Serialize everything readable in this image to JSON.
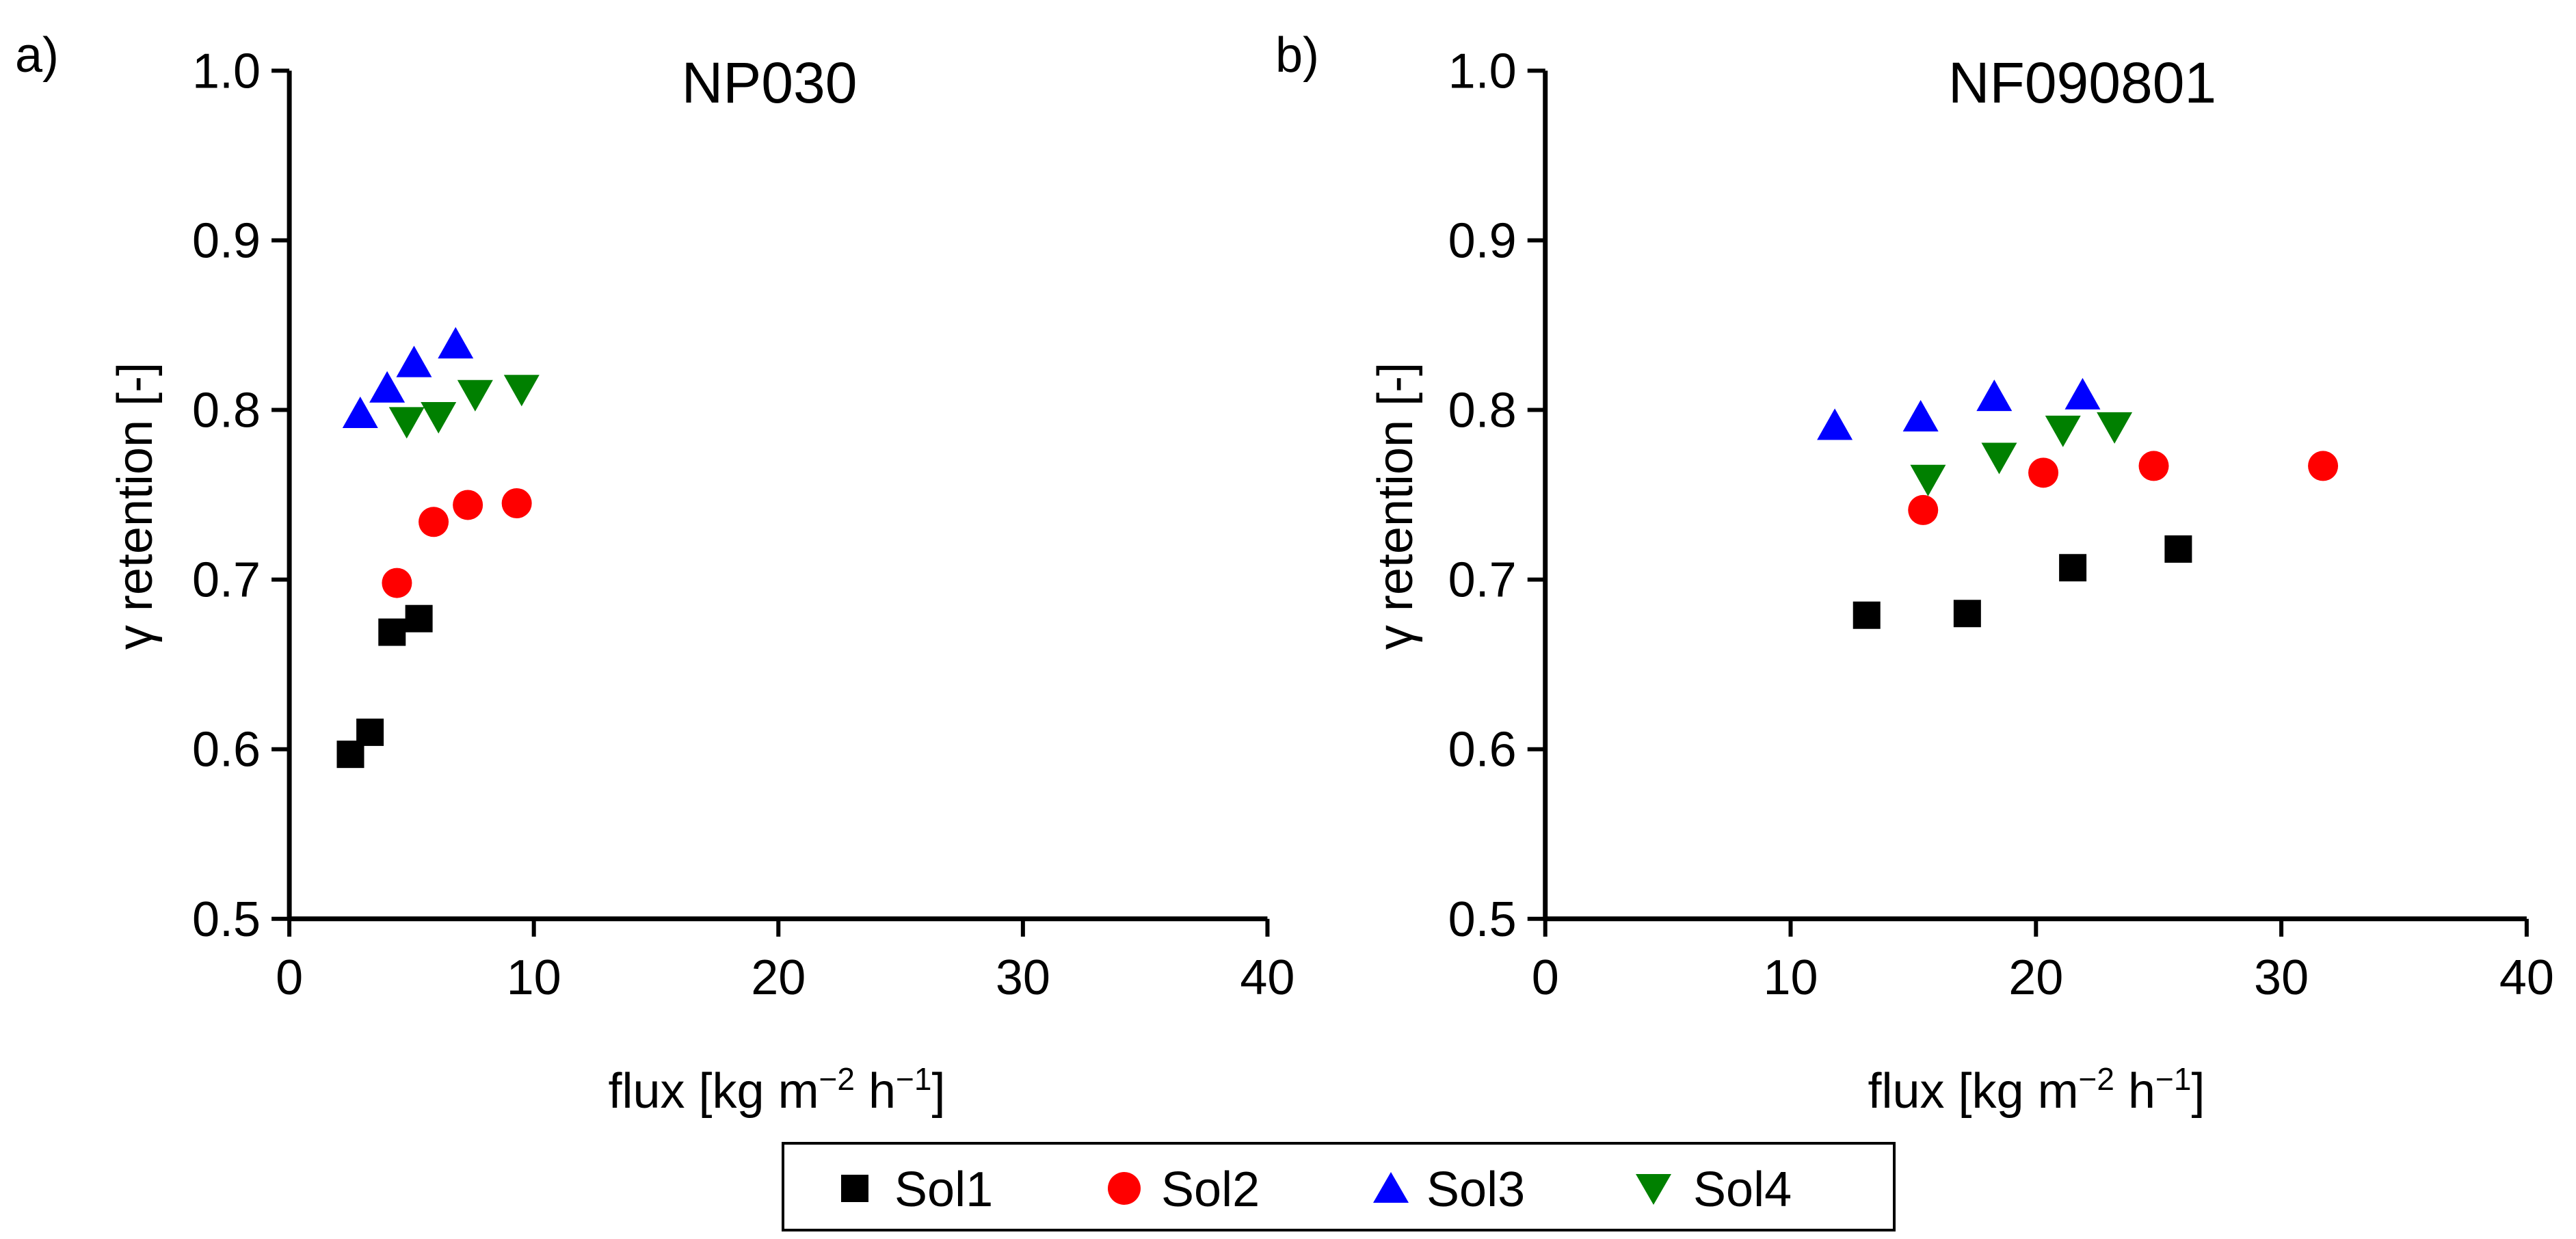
{
  "chart_data": [
    {
      "panel_label": "a)",
      "type": "scatter",
      "title": "NP030",
      "xlabel": "flux [kg m",
      "xlabel_sup1": "−2",
      "xlabel_mid": " h",
      "xlabel_sup2": "−1",
      "xlabel_end": "]",
      "ylabel": "γ retention [-]",
      "xlim": [
        0,
        40
      ],
      "ylim": [
        0.5,
        1.0
      ],
      "xticks": [
        0,
        10,
        20,
        30,
        40
      ],
      "xtick_labels": [
        "0",
        "10",
        "20",
        "30",
        "40"
      ],
      "yticks": [
        0.5,
        0.6,
        0.7,
        0.8,
        0.9,
        1.0
      ],
      "ytick_labels": [
        "0.5",
        "0.6",
        "0.7",
        "0.8",
        "0.9",
        "1.0"
      ],
      "grid": false,
      "series": [
        {
          "name": "Sol1",
          "x": [
            2.5,
            3.3,
            4.2,
            5.3
          ],
          "y": [
            0.597,
            0.61,
            0.669,
            0.677
          ]
        },
        {
          "name": "Sol2",
          "x": [
            4.4,
            5.9,
            7.3,
            9.3
          ],
          "y": [
            0.698,
            0.734,
            0.744,
            0.745
          ]
        },
        {
          "name": "Sol3",
          "x": [
            2.9,
            4.0,
            5.1,
            6.8
          ],
          "y": [
            0.797,
            0.812,
            0.827,
            0.838
          ]
        },
        {
          "name": "Sol4",
          "x": [
            4.8,
            6.1,
            7.6,
            9.5
          ],
          "y": [
            0.794,
            0.797,
            0.81,
            0.813
          ]
        }
      ]
    },
    {
      "panel_label": "b)",
      "type": "scatter",
      "title": "NF090801",
      "xlabel": "flux [kg m",
      "xlabel_sup1": "−2",
      "xlabel_mid": " h",
      "xlabel_sup2": "−1",
      "xlabel_end": "]",
      "ylabel": "γ retention [-]",
      "xlim": [
        0,
        40
      ],
      "ylim": [
        0.5,
        1.0
      ],
      "xticks": [
        0,
        10,
        20,
        30,
        40
      ],
      "xtick_labels": [
        "0",
        "10",
        "20",
        "30",
        "40"
      ],
      "yticks": [
        0.5,
        0.6,
        0.7,
        0.8,
        0.9,
        1.0
      ],
      "ytick_labels": [
        "0.5",
        "0.6",
        "0.7",
        "0.8",
        "0.9",
        "1.0"
      ],
      "grid": false,
      "series": [
        {
          "name": "Sol1",
          "x": [
            13.1,
            17.2,
            21.5,
            25.8
          ],
          "y": [
            0.679,
            0.68,
            0.707,
            0.718
          ]
        },
        {
          "name": "Sol2",
          "x": [
            15.4,
            20.3,
            24.8,
            31.7
          ],
          "y": [
            0.741,
            0.763,
            0.767,
            0.767
          ]
        },
        {
          "name": "Sol3",
          "x": [
            11.8,
            15.3,
            18.3,
            21.9
          ],
          "y": [
            0.79,
            0.795,
            0.807,
            0.808
          ]
        },
        {
          "name": "Sol4",
          "x": [
            15.6,
            18.5,
            21.1,
            23.2
          ],
          "y": [
            0.76,
            0.773,
            0.789,
            0.791
          ]
        }
      ]
    }
  ],
  "legend": {
    "placement": "bottom-center",
    "entries": [
      {
        "label": "Sol1",
        "marker": "square",
        "color": "#000000"
      },
      {
        "label": "Sol2",
        "marker": "circle",
        "color": "#ff0000"
      },
      {
        "label": "Sol3",
        "marker": "triangle-up",
        "color": "#0000ff"
      },
      {
        "label": "Sol4",
        "marker": "triangle-down",
        "color": "#008000"
      }
    ]
  }
}
